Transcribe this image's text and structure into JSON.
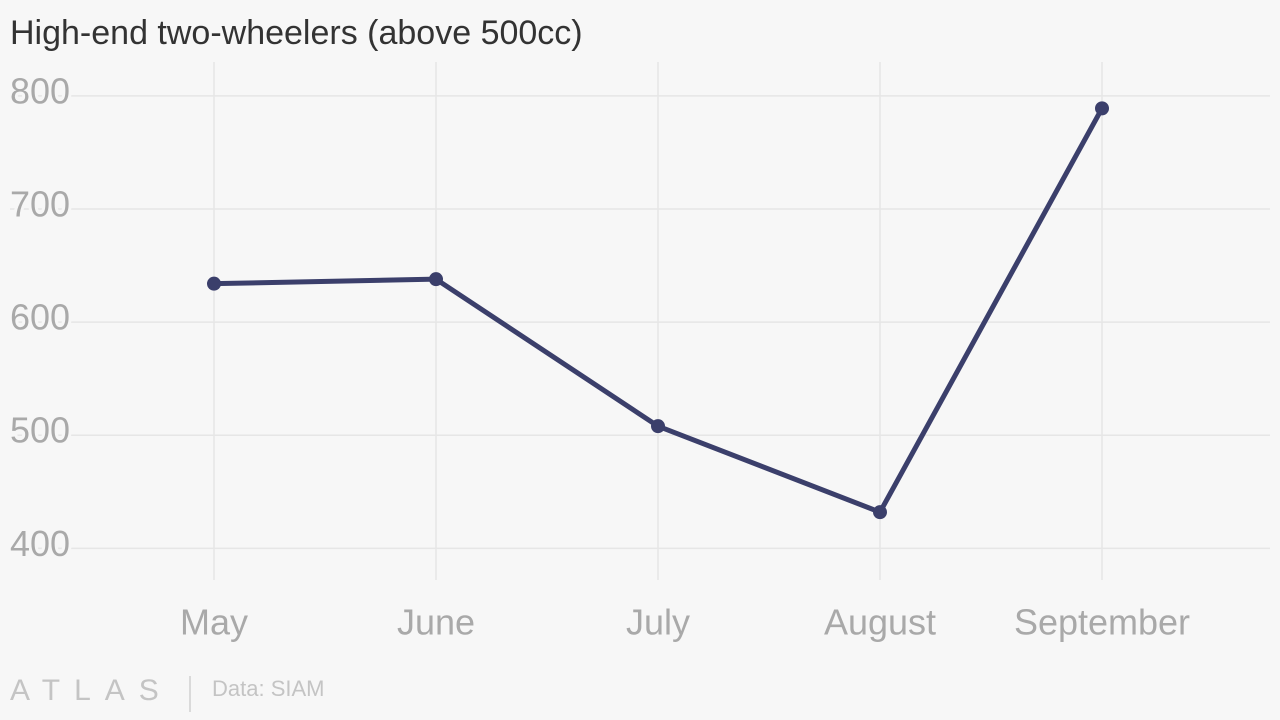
{
  "chart_data": {
    "type": "line",
    "title": "High-end two-wheelers (above 500cc)",
    "categories": [
      "May",
      "June",
      "July",
      "August",
      "September"
    ],
    "values": [
      634,
      638,
      508,
      432,
      789
    ],
    "color": "#3b3f6b",
    "ylim": [
      372,
      830
    ],
    "yticks": [
      400,
      500,
      600,
      700,
      800
    ],
    "grid": true,
    "logo": "ATLAS",
    "source": "Data: SIAM"
  }
}
